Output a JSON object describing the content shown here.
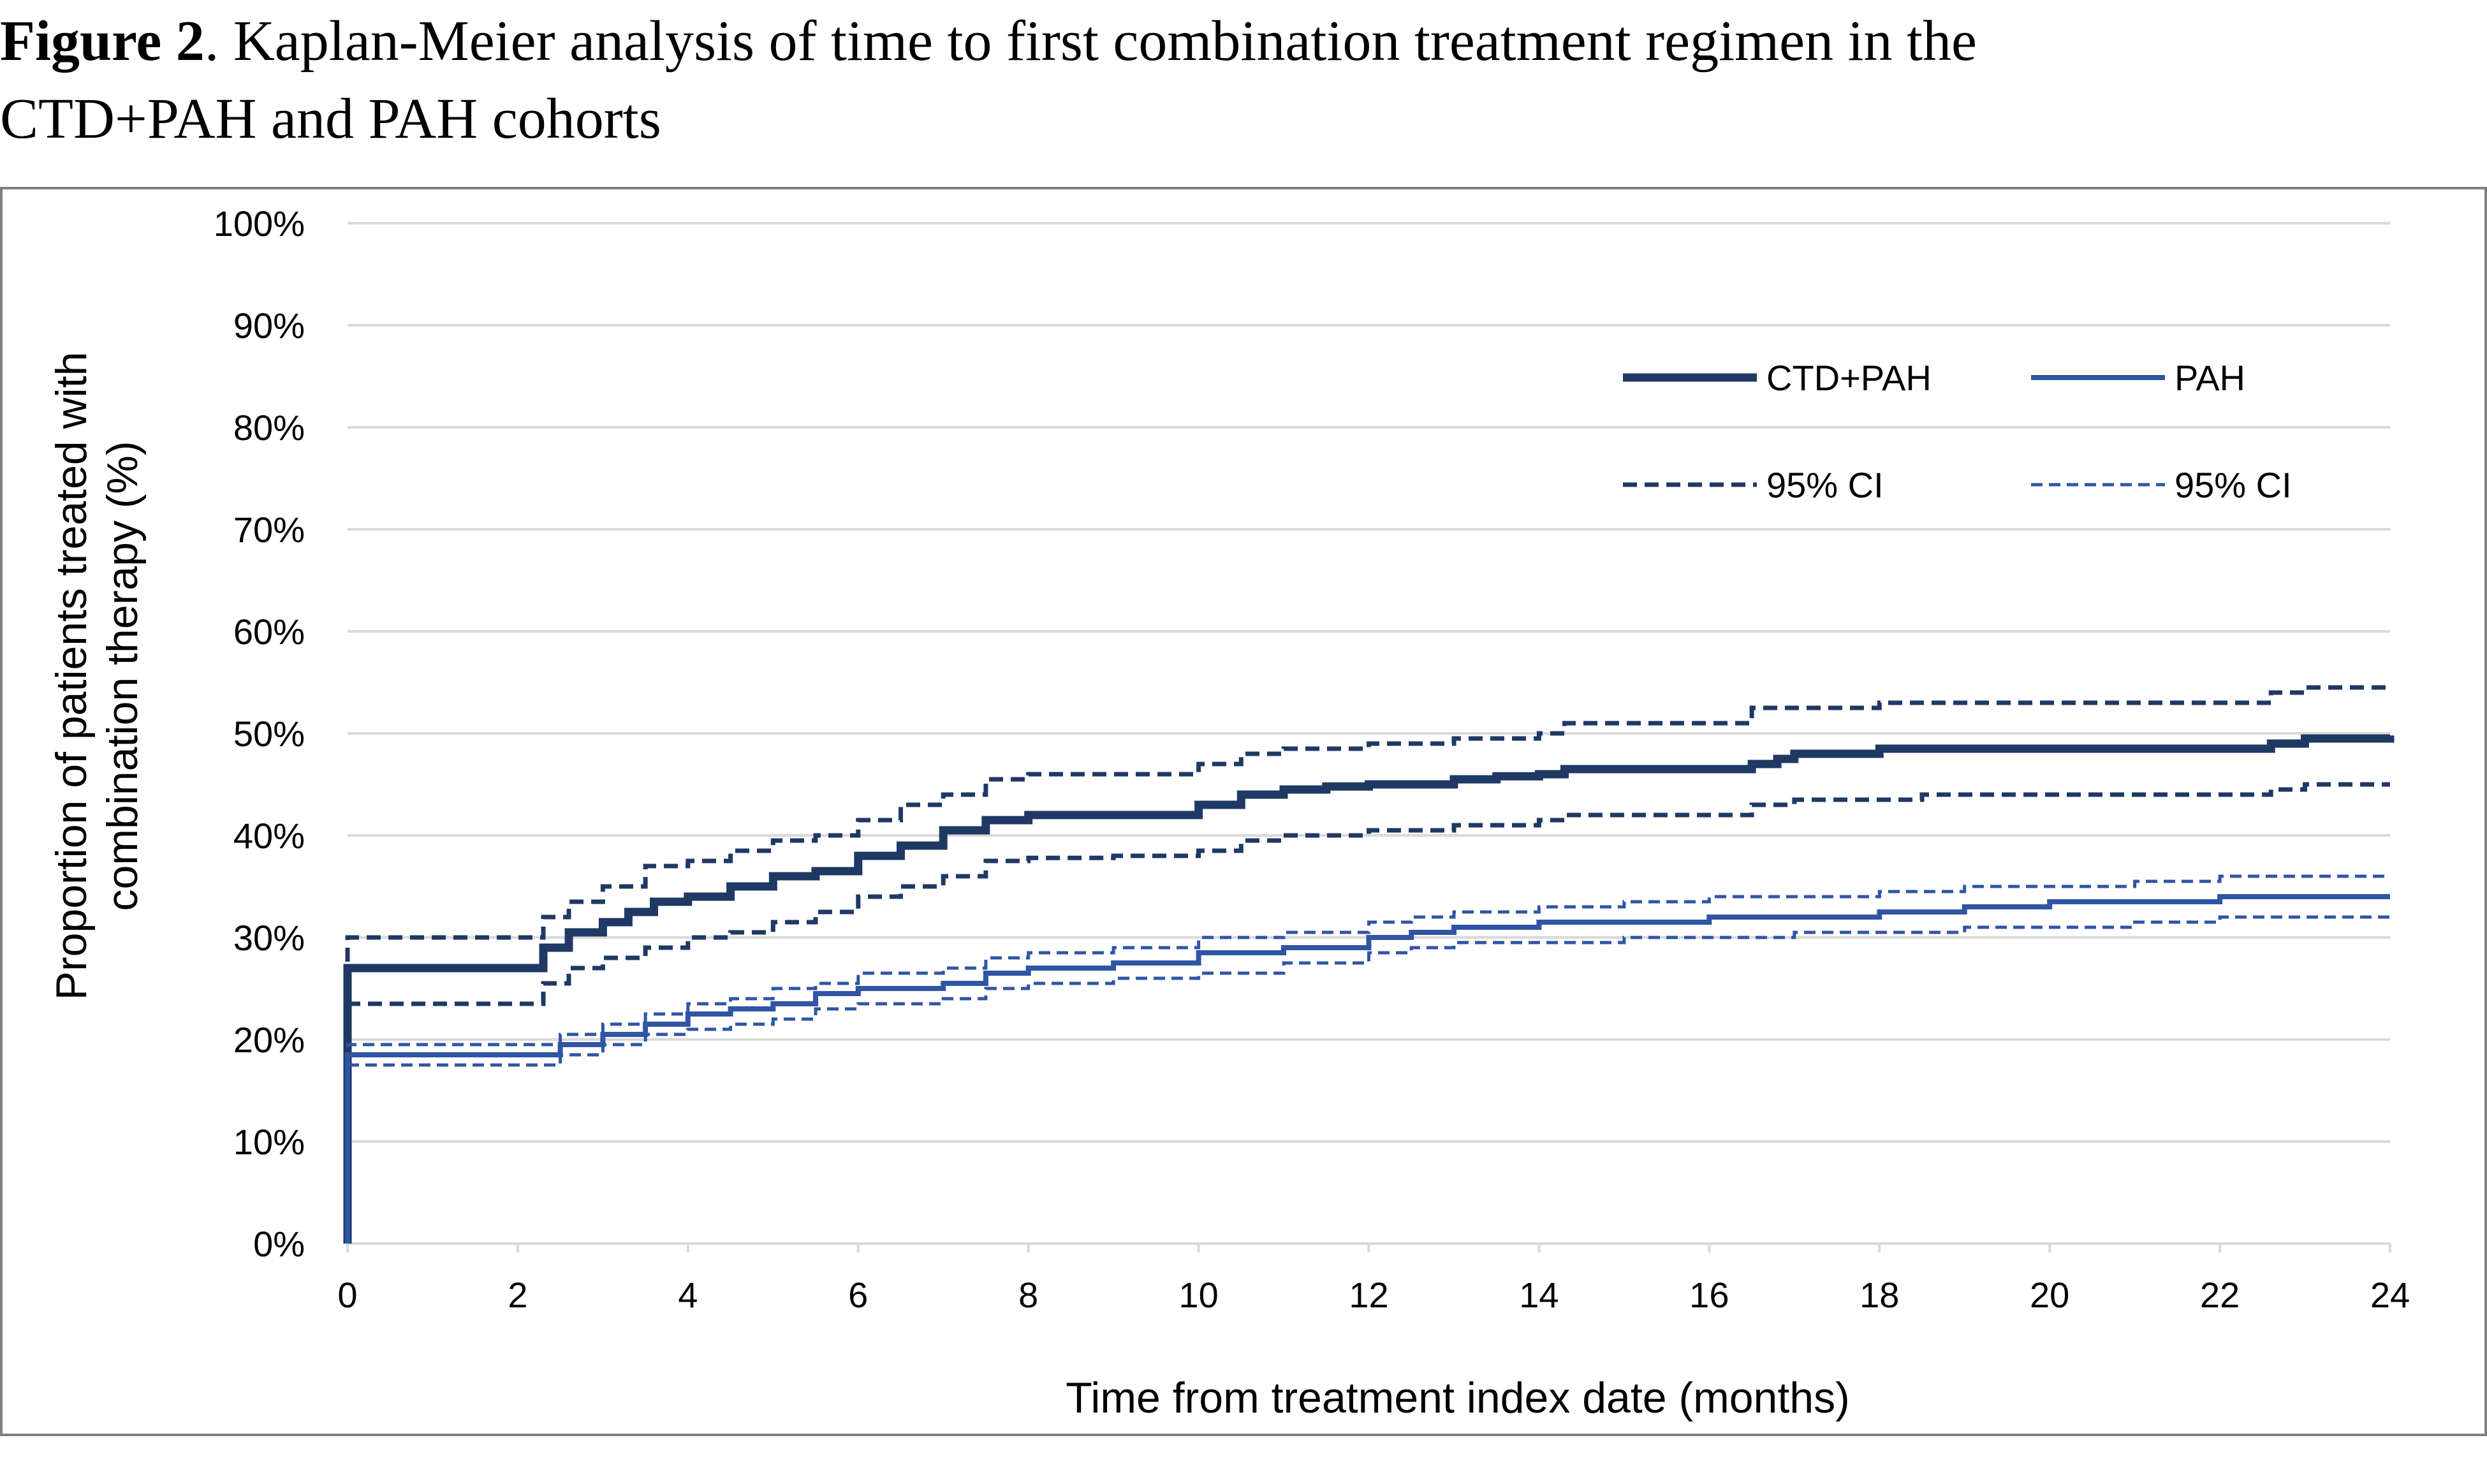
{
  "caption": {
    "label": "Figure 2",
    "text": ". Kaplan-Meier analysis of time to first combination treatment regimen in the",
    "text2": "CTD+PAH and PAH cohorts"
  },
  "colors": {
    "ctd_pah": "#1F3864",
    "pah": "#2F55A4",
    "grid": "#D9D9D9",
    "frame": "#808080"
  },
  "chart_data": {
    "type": "line",
    "title": "Figure 2. Kaplan-Meier analysis of time to first combination treatment regimen in the CTD+PAH and PAH cohorts",
    "xlabel": "Time from treatment index date (months)",
    "ylabel_line1": "Proportion of patients treated with",
    "ylabel_line2": "combination therapy (%)",
    "xlim": [
      0,
      24
    ],
    "ylim": [
      0,
      100
    ],
    "xticks": [
      0,
      2,
      4,
      6,
      8,
      10,
      12,
      14,
      16,
      18,
      20,
      22,
      24
    ],
    "yticks": [
      0,
      10,
      20,
      30,
      40,
      50,
      60,
      70,
      80,
      90,
      100
    ],
    "ytick_suffix": "%",
    "grid": true,
    "legend_position": "top-right",
    "series": [
      {
        "name": "CTD+PAH",
        "style": "solid-thick",
        "color_key": "ctd_pah",
        "points": [
          [
            0,
            0
          ],
          [
            0,
            27
          ],
          [
            2,
            27
          ],
          [
            2.3,
            29
          ],
          [
            2.6,
            30.5
          ],
          [
            3,
            31.5
          ],
          [
            3.3,
            32.5
          ],
          [
            3.6,
            33.5
          ],
          [
            4,
            34
          ],
          [
            4.5,
            35
          ],
          [
            5,
            36
          ],
          [
            5.5,
            36.5
          ],
          [
            6,
            38
          ],
          [
            6.5,
            39
          ],
          [
            7,
            40.5
          ],
          [
            7.5,
            41.5
          ],
          [
            8,
            42
          ],
          [
            9,
            42
          ],
          [
            10,
            43
          ],
          [
            10.5,
            44
          ],
          [
            11,
            44.5
          ],
          [
            11.5,
            44.8
          ],
          [
            12,
            45
          ],
          [
            13,
            45.5
          ],
          [
            13.5,
            45.8
          ],
          [
            14,
            46
          ],
          [
            14.3,
            46.5
          ],
          [
            16,
            46.5
          ],
          [
            16.5,
            47
          ],
          [
            16.8,
            47.5
          ],
          [
            17,
            48
          ],
          [
            18,
            48.5
          ],
          [
            22.5,
            48.5
          ],
          [
            22.6,
            49
          ],
          [
            23,
            49.5
          ],
          [
            24,
            49.8
          ]
        ]
      },
      {
        "name": "95% CI",
        "style": "dashed-thick",
        "color_key": "ctd_pah",
        "points": [
          [
            0,
            0
          ],
          [
            0,
            30
          ],
          [
            2,
            30
          ],
          [
            2.3,
            32
          ],
          [
            2.6,
            33.5
          ],
          [
            3,
            35
          ],
          [
            3.5,
            37
          ],
          [
            4,
            37.5
          ],
          [
            4.5,
            38.5
          ],
          [
            5,
            39.5
          ],
          [
            5.5,
            40
          ],
          [
            6,
            41.5
          ],
          [
            6.5,
            43
          ],
          [
            7,
            44
          ],
          [
            7.5,
            45.5
          ],
          [
            8,
            46
          ],
          [
            9,
            46
          ],
          [
            10,
            47
          ],
          [
            10.5,
            48
          ],
          [
            11,
            48.5
          ],
          [
            12,
            49
          ],
          [
            13,
            49.5
          ],
          [
            14,
            50
          ],
          [
            14.3,
            51
          ],
          [
            16,
            51
          ],
          [
            16.5,
            52.5
          ],
          [
            18,
            53
          ],
          [
            22.5,
            53
          ],
          [
            22.6,
            54
          ],
          [
            23,
            54.5
          ],
          [
            24,
            54.5
          ]
        ]
      },
      {
        "name": "95% CI",
        "style": "dashed-thick",
        "color_key": "ctd_pah",
        "points": [
          [
            0,
            0
          ],
          [
            0,
            23.5
          ],
          [
            2,
            23.5
          ],
          [
            2.3,
            25.5
          ],
          [
            2.6,
            27
          ],
          [
            3,
            28
          ],
          [
            3.5,
            29
          ],
          [
            4,
            30
          ],
          [
            4.5,
            30.5
          ],
          [
            5,
            31.5
          ],
          [
            5.5,
            32.5
          ],
          [
            6,
            34
          ],
          [
            6.5,
            35
          ],
          [
            7,
            36
          ],
          [
            7.5,
            37.5
          ],
          [
            8,
            37.8
          ],
          [
            9,
            38
          ],
          [
            10,
            38.5
          ],
          [
            10.5,
            39.5
          ],
          [
            11,
            40
          ],
          [
            12,
            40.5
          ],
          [
            13,
            41
          ],
          [
            14,
            41.5
          ],
          [
            14.3,
            42
          ],
          [
            16,
            42
          ],
          [
            16.5,
            43
          ],
          [
            17,
            43.5
          ],
          [
            18,
            43.5
          ],
          [
            18.5,
            44
          ],
          [
            22.5,
            44
          ],
          [
            22.6,
            44.5
          ],
          [
            23,
            45
          ],
          [
            24,
            45
          ]
        ]
      },
      {
        "name": "PAH",
        "style": "solid",
        "color_key": "pah",
        "points": [
          [
            0,
            0
          ],
          [
            0,
            18.5
          ],
          [
            2,
            18.5
          ],
          [
            2.5,
            19.5
          ],
          [
            3,
            20.5
          ],
          [
            3.5,
            21.5
          ],
          [
            4,
            22.5
          ],
          [
            4.5,
            23
          ],
          [
            5,
            23.5
          ],
          [
            5.5,
            24.5
          ],
          [
            6,
            25
          ],
          [
            7,
            25.5
          ],
          [
            7.5,
            26.5
          ],
          [
            8,
            27
          ],
          [
            9,
            27.5
          ],
          [
            10,
            28.5
          ],
          [
            11,
            29
          ],
          [
            12,
            30
          ],
          [
            12.5,
            30.5
          ],
          [
            13,
            31
          ],
          [
            14,
            31.5
          ],
          [
            15,
            31.5
          ],
          [
            16,
            32
          ],
          [
            17,
            32
          ],
          [
            18,
            32.5
          ],
          [
            19,
            33
          ],
          [
            20,
            33.5
          ],
          [
            21,
            33.5
          ],
          [
            22,
            34
          ],
          [
            24,
            34
          ]
        ]
      },
      {
        "name": "95% CI",
        "style": "dashed",
        "color_key": "pah",
        "points": [
          [
            0,
            0
          ],
          [
            0,
            19.5
          ],
          [
            2,
            19.5
          ],
          [
            2.5,
            20.5
          ],
          [
            3,
            21.5
          ],
          [
            3.5,
            22.5
          ],
          [
            4,
            23.5
          ],
          [
            4.5,
            24
          ],
          [
            5,
            25
          ],
          [
            5.5,
            25.5
          ],
          [
            6,
            26.5
          ],
          [
            7,
            27
          ],
          [
            7.5,
            28
          ],
          [
            8,
            28.5
          ],
          [
            9,
            29
          ],
          [
            10,
            30
          ],
          [
            11,
            30.5
          ],
          [
            12,
            31.5
          ],
          [
            12.5,
            32
          ],
          [
            13,
            32.5
          ],
          [
            14,
            33
          ],
          [
            15,
            33.5
          ],
          [
            16,
            34
          ],
          [
            17,
            34
          ],
          [
            18,
            34.5
          ],
          [
            19,
            35
          ],
          [
            20,
            35
          ],
          [
            21,
            35.5
          ],
          [
            22,
            36
          ],
          [
            24,
            36
          ]
        ]
      },
      {
        "name": "95% CI",
        "style": "dashed",
        "color_key": "pah",
        "points": [
          [
            0,
            0
          ],
          [
            0,
            17.5
          ],
          [
            2,
            17.5
          ],
          [
            2.5,
            18.5
          ],
          [
            3,
            19.5
          ],
          [
            3.5,
            20.5
          ],
          [
            4,
            21
          ],
          [
            4.5,
            21.5
          ],
          [
            5,
            22
          ],
          [
            5.5,
            23
          ],
          [
            6,
            23.5
          ],
          [
            7,
            24
          ],
          [
            7.5,
            25
          ],
          [
            8,
            25.5
          ],
          [
            9,
            26
          ],
          [
            10,
            26.5
          ],
          [
            11,
            27.5
          ],
          [
            12,
            28.5
          ],
          [
            12.5,
            29
          ],
          [
            13,
            29.5
          ],
          [
            14,
            29.5
          ],
          [
            15,
            30
          ],
          [
            16,
            30
          ],
          [
            17,
            30.5
          ],
          [
            18,
            30.5
          ],
          [
            19,
            31
          ],
          [
            20,
            31
          ],
          [
            21,
            31.5
          ],
          [
            22,
            32
          ],
          [
            24,
            32
          ]
        ]
      }
    ],
    "legend": [
      {
        "label": "CTD+PAH",
        "style": "solid-thick",
        "color_key": "ctd_pah"
      },
      {
        "label": "PAH",
        "style": "solid",
        "color_key": "pah"
      },
      {
        "label": "95% CI",
        "style": "dashed-thick",
        "color_key": "ctd_pah"
      },
      {
        "label": "95% CI",
        "style": "dashed",
        "color_key": "pah"
      }
    ]
  }
}
